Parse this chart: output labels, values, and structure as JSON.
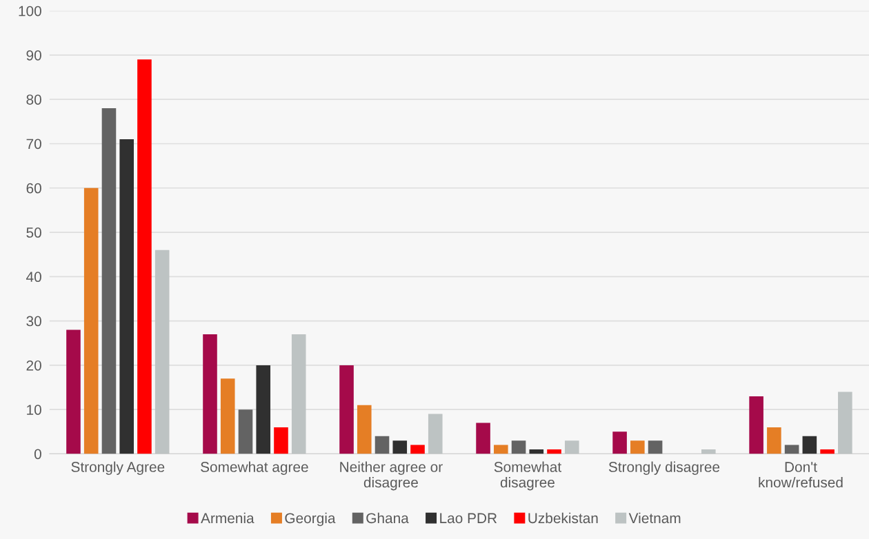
{
  "chart_data": {
    "type": "bar",
    "categories": [
      "Strongly Agree",
      "Somewhat agree",
      "Neither agree or\ndisagree",
      "Somewhat\ndisagree",
      "Strongly disagree",
      "Don't\nknow/refused"
    ],
    "series": [
      {
        "name": "Armenia",
        "color": "#a50a4a",
        "values": [
          28,
          27,
          20,
          7,
          5,
          13
        ]
      },
      {
        "name": "Georgia",
        "color": "#e57e25",
        "values": [
          60,
          17,
          11,
          2,
          3,
          6
        ]
      },
      {
        "name": "Ghana",
        "color": "#636363",
        "values": [
          78,
          10,
          4,
          3,
          3,
          2
        ]
      },
      {
        "name": "Lao PDR",
        "color": "#303030",
        "values": [
          71,
          20,
          3,
          1,
          0,
          4
        ]
      },
      {
        "name": "Uzbekistan",
        "color": "#ff0000",
        "values": [
          89,
          6,
          2,
          1,
          0,
          1
        ]
      },
      {
        "name": "Vietnam",
        "color": "#bdc3c3",
        "values": [
          46,
          27,
          9,
          3,
          1,
          14
        ]
      }
    ],
    "ylim": [
      0,
      100
    ],
    "yticks": [
      0,
      10,
      20,
      30,
      40,
      50,
      60,
      70,
      80,
      90,
      100
    ],
    "grid": "y",
    "legend": "bottom"
  }
}
